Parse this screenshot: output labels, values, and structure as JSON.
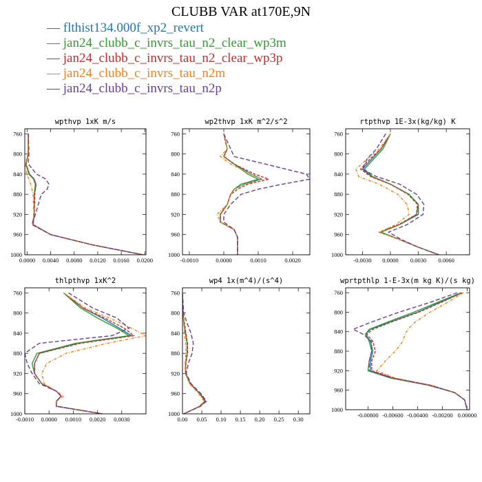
{
  "title": "CLUBB VAR at170E,9N",
  "legend": [
    {
      "label": "— flthist134.000f_xp2_revert",
      "color": "#1f77b4"
    },
    {
      "label": "— jan24_clubb_c_invrs_tau_n2_clear_wp3m",
      "color": "#2ca02c"
    },
    {
      "label": "— jan24_clubb_c_invrs_tau_n2_clear_wp3p",
      "color": "#d62728"
    },
    {
      "label": "— jan24_clubb_c_invrs_tau_n2m",
      "color": "#ff7f0e"
    },
    {
      "label": "— jan24_clubb_c_invrs_tau_n2p",
      "color": "#6a3d9a"
    }
  ],
  "chart_data": [
    {
      "type": "line",
      "title": "wpthvp  1xK m/s",
      "ylim": [
        1000,
        750
      ],
      "yticks": [
        760,
        800,
        840,
        880,
        920,
        960,
        1000
      ],
      "xlim": [
        -0.0004,
        0.0202
      ],
      "xticks": [
        0.0,
        0.004,
        0.008,
        0.012,
        0.016,
        0.02
      ],
      "xtick_labels": [
        "0.0000",
        "0.0040",
        "0.0080",
        "0.0120",
        "0.0160",
        "0.0200"
      ],
      "y": [
        760,
        800,
        820,
        840,
        850,
        860,
        870,
        880,
        920,
        940,
        960,
        980,
        1000
      ],
      "series": [
        {
          "color": "#1f77b4",
          "dash": "",
          "x": [
            0.0002,
            0.0002,
            -0.0002,
            0.0004,
            0.0012,
            0.0015,
            0.0014,
            0.0012,
            0.0012,
            0.001,
            0.004,
            0.011,
            0.0197
          ]
        },
        {
          "color": "#2ca02c",
          "dash": "",
          "x": [
            0.0002,
            0.0002,
            -0.0002,
            0.0003,
            0.0011,
            0.0014,
            0.0013,
            0.0012,
            0.0012,
            0.001,
            0.004,
            0.011,
            0.0197
          ]
        },
        {
          "color": "#d62728",
          "dash": "4,2",
          "x": [
            0.0002,
            0.0002,
            -0.0002,
            0.0004,
            0.0012,
            0.0015,
            0.0014,
            0.0013,
            0.0012,
            0.001,
            0.004,
            0.011,
            0.0197
          ]
        },
        {
          "color": "#ff7f0e",
          "dash": "4,2,1,2",
          "x": [
            0.0002,
            0.0001,
            -0.0003,
            -0.0001,
            0.0003,
            0.0006,
            0.0008,
            0.001,
            0.0011,
            0.0009,
            0.004,
            0.011,
            0.0197
          ]
        },
        {
          "color": "#6a3d9a",
          "dash": "6,3",
          "x": [
            0.0002,
            0.0003,
            0.0002,
            0.0016,
            0.0032,
            0.0037,
            0.0034,
            0.0024,
            0.0014,
            0.0008,
            0.004,
            0.011,
            0.0197
          ]
        }
      ]
    },
    {
      "type": "line",
      "title": "wp2thvp  1xK m^2/s^2",
      "ylim": [
        1000,
        750
      ],
      "yticks": [
        760,
        800,
        840,
        880,
        920,
        960,
        1000
      ],
      "xlim": [
        -0.0012,
        0.0025
      ],
      "xticks": [
        -0.001,
        0.0,
        0.001,
        0.002
      ],
      "xtick_labels": [
        "-0.0010",
        "0.0000",
        "0.0010",
        "0.0020"
      ],
      "y": [
        760,
        790,
        805,
        820,
        840,
        850,
        860,
        870,
        880,
        900,
        920,
        935,
        950,
        965,
        980,
        1000
      ],
      "series": [
        {
          "color": "#1f77b4",
          "dash": "",
          "x": [
            0.0,
            0.0001,
            0.0,
            0.0003,
            0.0008,
            0.0011,
            0.0006,
            0.0003,
            0.0002,
            0.0001,
            -0.0001,
            -0.0001,
            0.0003,
            0.0004,
            0.0004,
            0.0004
          ]
        },
        {
          "color": "#2ca02c",
          "dash": "",
          "x": [
            0.0,
            0.0001,
            0.0,
            0.0003,
            0.0007,
            0.001,
            0.0005,
            0.0003,
            0.0002,
            0.0001,
            -0.0001,
            -0.0001,
            0.0003,
            0.0004,
            0.0004,
            0.0004
          ]
        },
        {
          "color": "#d62728",
          "dash": "4,2",
          "x": [
            0.0,
            0.0001,
            0.0,
            0.0003,
            0.0009,
            0.0013,
            0.0007,
            0.0004,
            0.0002,
            0.0001,
            -0.0001,
            -0.0001,
            0.0003,
            0.0004,
            0.0004,
            0.0004
          ]
        },
        {
          "color": "#ff7f0e",
          "dash": "4,2,1,2",
          "x": [
            0.0,
            0.0001,
            -0.0001,
            0.0002,
            0.0008,
            0.0011,
            0.0006,
            0.0003,
            0.0002,
            0.0001,
            -0.0002,
            -0.0001,
            0.0003,
            0.0004,
            0.0004,
            0.0004
          ]
        },
        {
          "color": "#6a3d9a",
          "dash": "6,3",
          "x": [
            0.0,
            0.0002,
            0.0003,
            0.0012,
            0.0024,
            0.0025,
            0.0017,
            0.001,
            0.0005,
            0.0002,
            0.0,
            0.0,
            0.0003,
            0.0004,
            0.0004,
            0.0004
          ]
        }
      ]
    },
    {
      "type": "line",
      "title": "rtpthvp  1E-3x(kg/kg) K",
      "ylim": [
        1000,
        750
      ],
      "yticks": [
        760,
        800,
        840,
        880,
        920,
        960,
        1000
      ],
      "xlim": [
        -0.0048,
        0.0085
      ],
      "xticks": [
        -0.003,
        0.0,
        0.003,
        0.006
      ],
      "xtick_labels": [
        "-0.0030",
        "0.0000",
        "0.0030",
        "0.0060"
      ],
      "y": [
        760,
        790,
        810,
        830,
        845,
        860,
        880,
        900,
        920,
        940,
        955,
        970,
        985,
        1000
      ],
      "series": [
        {
          "color": "#1f77b4",
          "dash": "",
          "x": [
            0.0,
            -0.001,
            -0.002,
            -0.003,
            -0.002,
            0.0,
            0.002,
            0.003,
            0.003,
            0.001,
            -0.001,
            0.001,
            0.003,
            0.0052
          ]
        },
        {
          "color": "#2ca02c",
          "dash": "",
          "x": [
            0.0,
            -0.0008,
            -0.0018,
            -0.0028,
            -0.0019,
            0.0,
            0.002,
            0.003,
            0.0028,
            0.001,
            -0.001,
            0.001,
            0.003,
            0.0052
          ]
        },
        {
          "color": "#d62728",
          "dash": "4,2",
          "x": [
            0.0,
            -0.001,
            -0.0022,
            -0.0032,
            -0.0021,
            0.0,
            0.0019,
            0.0029,
            0.0028,
            0.0009,
            -0.0012,
            0.001,
            0.003,
            0.0052
          ]
        },
        {
          "color": "#ff7f0e",
          "dash": "4,2,1,2",
          "x": [
            0.0,
            -0.0012,
            -0.0025,
            -0.0037,
            -0.0034,
            -0.0012,
            0.0008,
            0.0018,
            0.002,
            0.0006,
            -0.0012,
            0.001,
            0.003,
            0.0052
          ]
        },
        {
          "color": "#6a3d9a",
          "dash": "6,3",
          "x": [
            -0.0005,
            -0.0015,
            -0.0025,
            -0.003,
            -0.0015,
            0.001,
            0.0028,
            0.0036,
            0.0035,
            0.0018,
            -0.0002,
            0.0012,
            0.003,
            0.0052
          ]
        }
      ]
    },
    {
      "type": "line",
      "title": "thlpthvp  1xK^2",
      "ylim": [
        1000,
        750
      ],
      "yticks": [
        760,
        800,
        840,
        880,
        920,
        960,
        1000
      ],
      "xlim": [
        -0.001,
        0.004
      ],
      "xticks": [
        -0.001,
        0.0,
        0.001,
        0.002,
        0.003
      ],
      "xtick_labels": [
        "-0.0010",
        "0.0000",
        "0.0010",
        "0.0020",
        "0.0030"
      ],
      "y": [
        760,
        790,
        810,
        830,
        845,
        860,
        880,
        900,
        920,
        940,
        955,
        965,
        975,
        985,
        1000
      ],
      "series": [
        {
          "color": "#1f77b4",
          "dash": "",
          "x": [
            0.0006,
            0.0014,
            0.0022,
            0.0029,
            0.0034,
            0.0012,
            -0.0004,
            -0.0006,
            -0.0006,
            -0.0003,
            0.0003,
            0.0005,
            0.0003,
            0.0003,
            0.0022
          ]
        },
        {
          "color": "#2ca02c",
          "dash": "",
          "x": [
            0.0006,
            0.0013,
            0.002,
            0.0028,
            0.0033,
            0.0011,
            -0.0005,
            -0.0007,
            -0.0006,
            -0.0003,
            0.0003,
            0.0005,
            0.0003,
            0.0003,
            0.0022
          ]
        },
        {
          "color": "#d62728",
          "dash": "4,2",
          "x": [
            0.0006,
            0.0014,
            0.0023,
            0.0031,
            0.0035,
            0.0013,
            -0.0004,
            -0.0006,
            -0.0006,
            -0.0003,
            0.0003,
            0.0005,
            0.0003,
            0.0003,
            0.0022
          ]
        },
        {
          "color": "#ff7f0e",
          "dash": "4,2,1,2",
          "x": [
            0.0006,
            0.0015,
            0.0025,
            0.0034,
            0.004,
            0.0024,
            0.0007,
            -0.0001,
            -0.0003,
            -0.0002,
            0.0003,
            0.0006,
            0.0003,
            0.0003,
            0.0022
          ]
        },
        {
          "color": "#6a3d9a",
          "dash": "6,3",
          "x": [
            0.0008,
            0.0018,
            0.0028,
            0.0033,
            0.0026,
            -0.0004,
            -0.001,
            -0.0009,
            -0.0007,
            -0.0004,
            0.0003,
            0.0005,
            0.0003,
            0.0003,
            0.0022
          ]
        }
      ]
    },
    {
      "type": "line",
      "title": "wp4  1x(m^4)/(s^4)",
      "ylim": [
        1000,
        750
      ],
      "yticks": [
        760,
        800,
        840,
        880,
        920,
        960,
        1000
      ],
      "xlim": [
        0.0,
        0.33
      ],
      "xticks": [
        0.0,
        0.05,
        0.1,
        0.15,
        0.2,
        0.25,
        0.3
      ],
      "xtick_labels": [
        "0.00",
        "0.05",
        "0.10",
        "0.15",
        "0.20",
        "0.25",
        "0.30"
      ],
      "y": [
        760,
        800,
        820,
        840,
        860,
        880,
        900,
        920,
        940,
        960,
        975,
        985,
        1000
      ],
      "series": [
        {
          "color": "#1f77b4",
          "dash": "",
          "x": [
            0.0,
            0.001,
            0.004,
            0.008,
            0.012,
            0.012,
            0.008,
            0.008,
            0.02,
            0.045,
            0.06,
            0.045,
            0.003
          ]
        },
        {
          "color": "#2ca02c",
          "dash": "",
          "x": [
            0.0,
            0.001,
            0.004,
            0.008,
            0.012,
            0.012,
            0.008,
            0.008,
            0.02,
            0.045,
            0.058,
            0.045,
            0.003
          ]
        },
        {
          "color": "#d62728",
          "dash": "4,2",
          "x": [
            0.0,
            0.001,
            0.005,
            0.009,
            0.013,
            0.013,
            0.009,
            0.008,
            0.02,
            0.046,
            0.06,
            0.046,
            0.003
          ]
        },
        {
          "color": "#ff7f0e",
          "dash": "4,2,1,2",
          "x": [
            0.0,
            0.001,
            0.003,
            0.005,
            0.008,
            0.009,
            0.007,
            0.007,
            0.018,
            0.042,
            0.056,
            0.043,
            0.003
          ]
        },
        {
          "color": "#6a3d9a",
          "dash": "6,3",
          "x": [
            0.0,
            0.003,
            0.012,
            0.022,
            0.028,
            0.025,
            0.015,
            0.01,
            0.022,
            0.048,
            0.062,
            0.047,
            0.003
          ]
        }
      ]
    },
    {
      "type": "line",
      "title": "wprtpthlp  1-E-3x(m kg K)/(s kg)",
      "ylim": [
        1000,
        750
      ],
      "yticks": [
        760,
        800,
        840,
        880,
        920,
        960,
        1000
      ],
      "xlim": [
        -0.0098,
        0.0002
      ],
      "xticks": [
        -0.008,
        -0.006,
        -0.004,
        -0.002,
        0.0
      ],
      "xtick_labels": [
        "-0.00800",
        "-0.00600",
        "-0.00400",
        "-0.00200",
        "0.00000"
      ],
      "y": [
        760,
        780,
        800,
        820,
        835,
        845,
        860,
        880,
        900,
        920,
        935,
        950,
        965,
        980,
        1000
      ],
      "series": [
        {
          "color": "#1f77b4",
          "dash": "",
          "x": [
            -0.0004,
            -0.0022,
            -0.004,
            -0.0062,
            -0.0078,
            -0.0082,
            -0.0078,
            -0.0076,
            -0.0078,
            -0.0078,
            -0.006,
            -0.003,
            -0.001,
            -0.0002,
            0.0
          ]
        },
        {
          "color": "#2ca02c",
          "dash": "",
          "x": [
            -0.0005,
            -0.0024,
            -0.0043,
            -0.0064,
            -0.0079,
            -0.0082,
            -0.0079,
            -0.0077,
            -0.0079,
            -0.008,
            -0.0062,
            -0.0031,
            -0.001,
            -0.0002,
            0.0
          ]
        },
        {
          "color": "#d62728",
          "dash": "4,2",
          "x": [
            -0.0004,
            -0.0021,
            -0.0039,
            -0.0061,
            -0.0076,
            -0.0081,
            -0.0076,
            -0.0074,
            -0.0077,
            -0.0077,
            -0.0059,
            -0.0029,
            -0.001,
            -0.0002,
            0.0
          ]
        },
        {
          "color": "#ff7f0e",
          "dash": "4,2,1,2",
          "x": [
            -0.0003,
            -0.0016,
            -0.003,
            -0.0042,
            -0.0048,
            -0.005,
            -0.0052,
            -0.0058,
            -0.0066,
            -0.0073,
            -0.0058,
            -0.0029,
            -0.001,
            -0.0002,
            0.0
          ]
        },
        {
          "color": "#6a3d9a",
          "dash": "6,3",
          "x": [
            -0.0008,
            -0.003,
            -0.0055,
            -0.0077,
            -0.0092,
            -0.0084,
            -0.0077,
            -0.0077,
            -0.0079,
            -0.0079,
            -0.0061,
            -0.003,
            -0.001,
            -0.0002,
            0.0
          ]
        }
      ]
    }
  ]
}
